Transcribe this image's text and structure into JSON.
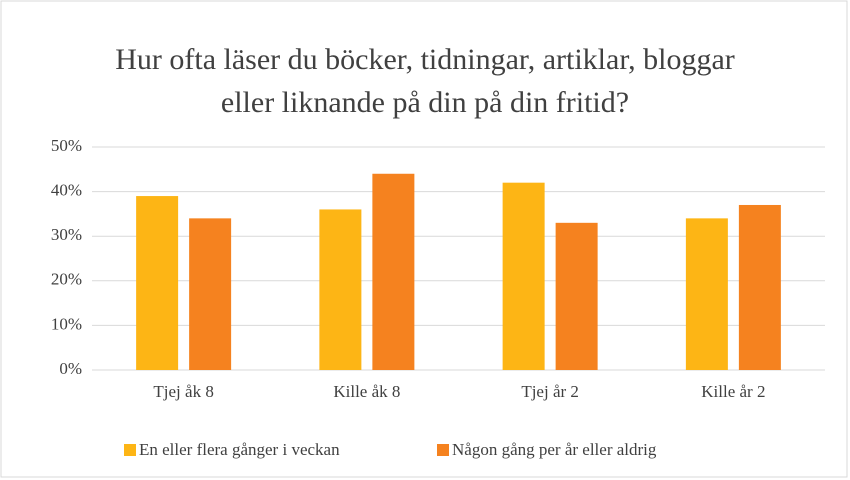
{
  "chart_data": {
    "type": "bar",
    "title": "Hur ofta läser du böcker, tidningar, artiklar, bloggar eller liknande på din på din fritid?",
    "categories": [
      "Tjej åk 8",
      "Kille åk 8",
      "Tjej år 2",
      "Kille år 2"
    ],
    "series": [
      {
        "name": "En eller flera gånger i veckan",
        "color": "#fdb515",
        "values": [
          39,
          36,
          42,
          34
        ]
      },
      {
        "name": "Någon gång per år eller aldrig",
        "color": "#f5821f",
        "values": [
          34,
          44,
          33,
          37
        ]
      }
    ],
    "ylim": [
      0,
      50
    ],
    "yticks": [
      {
        "value": 0,
        "label": "0%"
      },
      {
        "value": 10,
        "label": "10%"
      },
      {
        "value": 20,
        "label": "20%"
      },
      {
        "value": 30,
        "label": "30%"
      },
      {
        "value": 40,
        "label": "40%"
      },
      {
        "value": 50,
        "label": "50%"
      }
    ],
    "grid": true,
    "legend": "bottom"
  }
}
